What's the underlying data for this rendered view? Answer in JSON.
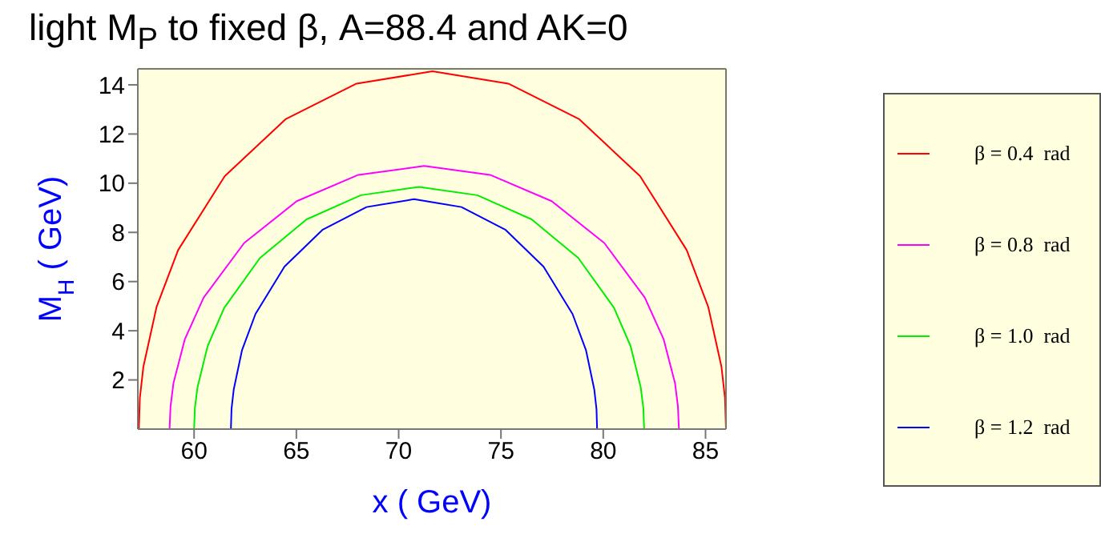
{
  "chart_data": {
    "type": "line",
    "title": "light M$_{P}$ to fixed β, A=88.4 and AK=0",
    "xlabel": "x ( GeV)",
    "ylabel": "M$_{H}$ ( GeV)",
    "xlim": [
      57.25,
      86
    ],
    "xticks": [
      60,
      65,
      70,
      75,
      80,
      85
    ],
    "ylim": [
      0,
      14.65
    ],
    "yticks": [
      2,
      4,
      6,
      8,
      10,
      12,
      14
    ],
    "legend": "right",
    "marker": "none",
    "line_style": "solid",
    "series": [
      {
        "name": "β = 0.4  rad",
        "color": "#ff0000",
        "x": [
          57.3,
          57.35,
          57.52,
          58.17,
          59.22,
          61.5,
          64.47,
          67.94,
          71.65,
          75.36,
          78.83,
          81.8,
          84.08,
          85.13,
          85.78,
          85.95,
          86.0
        ],
        "values": [
          0,
          1.27,
          2.53,
          4.98,
          7.28,
          10.29,
          12.6,
          14.05,
          14.55,
          14.05,
          12.6,
          10.29,
          7.28,
          4.98,
          2.53,
          1.27,
          0
        ]
      },
      {
        "name": "β = 0.8  rad",
        "color": "#ff00ff",
        "x": [
          58.8,
          58.85,
          58.99,
          59.55,
          60.47,
          62.45,
          65.02,
          68.03,
          71.25,
          74.47,
          77.48,
          80.05,
          82.03,
          82.95,
          83.51,
          83.65,
          83.7
        ],
        "values": [
          0,
          0.93,
          1.86,
          3.66,
          5.35,
          7.57,
          9.27,
          10.34,
          10.7,
          10.34,
          9.27,
          7.57,
          5.35,
          3.66,
          1.86,
          0.93,
          0
        ]
      },
      {
        "name": "β = 1.0  rad",
        "color": "#00ee00",
        "x": [
          60,
          60.04,
          60.17,
          60.66,
          61.47,
          63.22,
          65.5,
          68.15,
          71,
          73.85,
          76.5,
          78.78,
          80.53,
          81.34,
          81.83,
          81.96,
          82
        ],
        "values": [
          0,
          0.86,
          1.71,
          3.37,
          4.93,
          6.96,
          8.53,
          9.51,
          9.85,
          9.51,
          8.53,
          6.96,
          4.93,
          3.37,
          1.71,
          0.86,
          0
        ]
      },
      {
        "name": "β = 1.2  rad",
        "color": "#0000ff",
        "x": [
          61.8,
          61.83,
          61.94,
          62.34,
          63,
          64.42,
          66.27,
          68.43,
          70.75,
          73.07,
          75.23,
          77.08,
          78.5,
          79.16,
          79.56,
          79.67,
          79.7
        ],
        "values": [
          0,
          0.82,
          1.62,
          3.2,
          4.68,
          6.61,
          8.1,
          9.03,
          9.35,
          9.03,
          8.1,
          6.61,
          4.68,
          3.2,
          1.62,
          0.82,
          0
        ]
      }
    ]
  }
}
